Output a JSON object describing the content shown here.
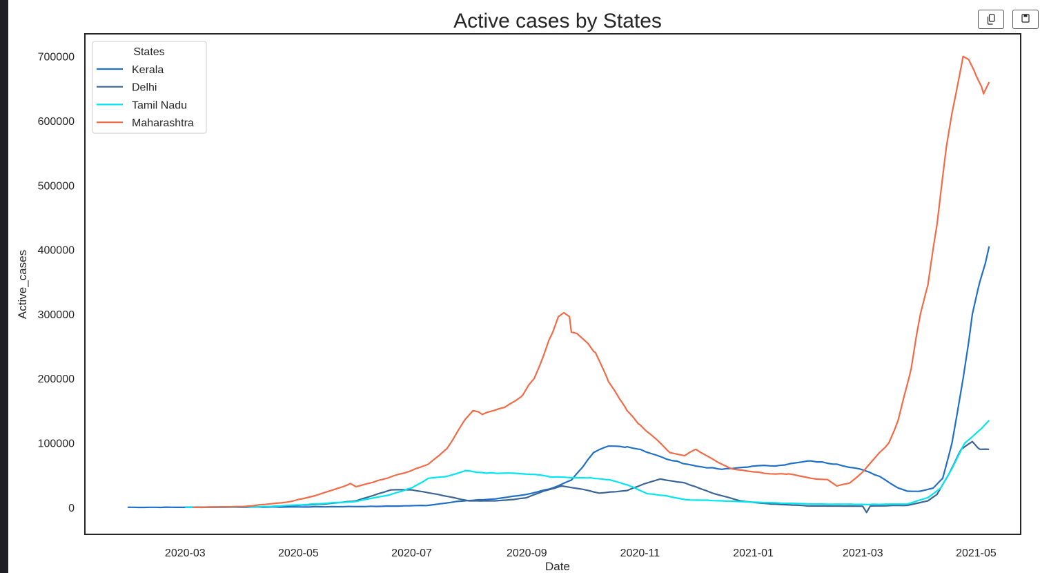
{
  "toolbar": {
    "copy_icon": "copy-icon",
    "save_icon": "save-icon"
  },
  "chart_data": {
    "type": "line",
    "title": "Active cases by States",
    "xlabel": "Date",
    "ylabel": "Active_cases",
    "ylim": [
      -42000,
      735000
    ],
    "xlim": [
      "2020-01-07",
      "2021-05-25"
    ],
    "grid": false,
    "legend": {
      "title": "States",
      "placement": "top-left"
    },
    "x_ticks": [
      "2020-03",
      "2020-05",
      "2020-07",
      "2020-09",
      "2020-11",
      "2021-01",
      "2021-03",
      "2021-05"
    ],
    "y_ticks": [
      0,
      100000,
      200000,
      300000,
      400000,
      500000,
      600000,
      700000
    ],
    "series": [
      {
        "name": "Kerala",
        "color": "#1f6fc9",
        "points": [
          [
            "2020-01-30",
            0
          ],
          [
            "2020-03-01",
            0
          ],
          [
            "2020-05-01",
            500
          ],
          [
            "2020-06-15",
            1500
          ],
          [
            "2020-07-10",
            3000
          ],
          [
            "2020-07-25",
            9000
          ],
          [
            "2020-08-15",
            13000
          ],
          [
            "2020-09-01",
            20000
          ],
          [
            "2020-09-15",
            30000
          ],
          [
            "2020-09-25",
            42000
          ],
          [
            "2020-10-01",
            62000
          ],
          [
            "2020-10-07",
            85000
          ],
          [
            "2020-10-15",
            95000
          ],
          [
            "2020-10-25",
            94000
          ],
          [
            "2020-11-01",
            90000
          ],
          [
            "2020-11-15",
            75000
          ],
          [
            "2020-12-01",
            64000
          ],
          [
            "2020-12-15",
            59000
          ],
          [
            "2020-12-20",
            60000
          ],
          [
            "2021-01-01",
            64000
          ],
          [
            "2021-01-15",
            65000
          ],
          [
            "2021-02-01",
            72000
          ],
          [
            "2021-02-15",
            67000
          ],
          [
            "2021-03-01",
            58000
          ],
          [
            "2021-03-10",
            48000
          ],
          [
            "2021-03-20",
            30000
          ],
          [
            "2021-03-25",
            25000
          ],
          [
            "2021-04-01",
            25000
          ],
          [
            "2021-04-08",
            30000
          ],
          [
            "2021-04-13",
            45000
          ],
          [
            "2021-04-18",
            100000
          ],
          [
            "2021-04-24",
            200000
          ],
          [
            "2021-04-29",
            300000
          ],
          [
            "2021-05-03",
            350000
          ],
          [
            "2021-05-08",
            405000
          ]
        ]
      },
      {
        "name": "Delhi",
        "color": "#3a6594",
        "points": [
          [
            "2020-03-01",
            0
          ],
          [
            "2020-04-15",
            1000
          ],
          [
            "2020-05-15",
            5000
          ],
          [
            "2020-06-01",
            10000
          ],
          [
            "2020-06-20",
            27000
          ],
          [
            "2020-07-01",
            27000
          ],
          [
            "2020-07-15",
            20000
          ],
          [
            "2020-07-25",
            14000
          ],
          [
            "2020-08-01",
            10000
          ],
          [
            "2020-08-15",
            10000
          ],
          [
            "2020-08-25",
            12000
          ],
          [
            "2020-09-01",
            15000
          ],
          [
            "2020-09-10",
            25000
          ],
          [
            "2020-09-20",
            33000
          ],
          [
            "2020-10-01",
            28000
          ],
          [
            "2020-10-10",
            22000
          ],
          [
            "2020-10-25",
            26000
          ],
          [
            "2020-11-05",
            38000
          ],
          [
            "2020-11-12",
            44000
          ],
          [
            "2020-11-25",
            38000
          ],
          [
            "2020-12-10",
            22000
          ],
          [
            "2020-12-25",
            10000
          ],
          [
            "2021-01-10",
            5000
          ],
          [
            "2021-02-01",
            2000
          ],
          [
            "2021-03-01",
            1500
          ],
          [
            "2021-03-03",
            -8000
          ],
          [
            "2021-03-05",
            2000
          ],
          [
            "2021-03-25",
            3000
          ],
          [
            "2021-04-05",
            10000
          ],
          [
            "2021-04-10",
            20000
          ],
          [
            "2021-04-16",
            50000
          ],
          [
            "2021-04-23",
            90000
          ],
          [
            "2021-04-29",
            102000
          ],
          [
            "2021-05-03",
            90000
          ],
          [
            "2021-05-08",
            90000
          ]
        ]
      },
      {
        "name": "Tamil Nadu",
        "color": "#00e5f2",
        "points": [
          [
            "2020-03-01",
            0
          ],
          [
            "2020-04-15",
            1000
          ],
          [
            "2020-05-15",
            6000
          ],
          [
            "2020-06-01",
            9000
          ],
          [
            "2020-06-20",
            20000
          ],
          [
            "2020-07-01",
            30000
          ],
          [
            "2020-07-10",
            45000
          ],
          [
            "2020-07-20",
            48000
          ],
          [
            "2020-07-30",
            57000
          ],
          [
            "2020-08-10",
            53000
          ],
          [
            "2020-08-25",
            53000
          ],
          [
            "2020-09-05",
            51000
          ],
          [
            "2020-09-15",
            47000
          ],
          [
            "2020-09-25",
            46000
          ],
          [
            "2020-10-05",
            46000
          ],
          [
            "2020-10-15",
            43000
          ],
          [
            "2020-10-25",
            35000
          ],
          [
            "2020-11-05",
            21000
          ],
          [
            "2020-11-15",
            18000
          ],
          [
            "2020-11-25",
            12000
          ],
          [
            "2020-12-15",
            10000
          ],
          [
            "2021-01-01",
            8000
          ],
          [
            "2021-02-01",
            5000
          ],
          [
            "2021-03-01",
            4500
          ],
          [
            "2021-03-25",
            5000
          ],
          [
            "2021-04-05",
            15000
          ],
          [
            "2021-04-12",
            30000
          ],
          [
            "2021-04-18",
            60000
          ],
          [
            "2021-04-25",
            100000
          ],
          [
            "2021-05-01",
            115000
          ],
          [
            "2021-05-08",
            135000
          ]
        ]
      },
      {
        "name": "Maharashtra",
        "color": "#f26a46",
        "points": [
          [
            "2020-03-05",
            0
          ],
          [
            "2020-04-01",
            1000
          ],
          [
            "2020-04-25",
            8000
          ],
          [
            "2020-05-10",
            18000
          ],
          [
            "2020-05-25",
            32000
          ],
          [
            "2020-05-29",
            37000
          ],
          [
            "2020-06-01",
            32000
          ],
          [
            "2020-06-15",
            43000
          ],
          [
            "2020-06-30",
            56000
          ],
          [
            "2020-07-10",
            67000
          ],
          [
            "2020-07-20",
            91000
          ],
          [
            "2020-07-30",
            137000
          ],
          [
            "2020-08-03",
            150000
          ],
          [
            "2020-08-08",
            144000
          ],
          [
            "2020-08-20",
            155000
          ],
          [
            "2020-08-30",
            175000
          ],
          [
            "2020-09-05",
            200000
          ],
          [
            "2020-09-10",
            235000
          ],
          [
            "2020-09-15",
            272000
          ],
          [
            "2020-09-18",
            296000
          ],
          [
            "2020-09-21",
            302000
          ],
          [
            "2020-09-24",
            296000
          ],
          [
            "2020-09-25",
            272000
          ],
          [
            "2020-10-01",
            262000
          ],
          [
            "2020-10-08",
            240000
          ],
          [
            "2020-10-15",
            195000
          ],
          [
            "2020-10-25",
            150000
          ],
          [
            "2020-11-01",
            128000
          ],
          [
            "2020-11-10",
            105000
          ],
          [
            "2020-11-17",
            85000
          ],
          [
            "2020-11-25",
            80000
          ],
          [
            "2020-12-01",
            90000
          ],
          [
            "2020-12-10",
            75000
          ],
          [
            "2020-12-20",
            60000
          ],
          [
            "2021-01-01",
            55000
          ],
          [
            "2021-01-10",
            52000
          ],
          [
            "2021-01-20",
            52000
          ],
          [
            "2021-02-01",
            45000
          ],
          [
            "2021-02-10",
            43000
          ],
          [
            "2021-02-15",
            33000
          ],
          [
            "2021-02-22",
            38000
          ],
          [
            "2021-03-01",
            55000
          ],
          [
            "2021-03-10",
            85000
          ],
          [
            "2021-03-15",
            100000
          ],
          [
            "2021-03-20",
            135000
          ],
          [
            "2021-03-27",
            215000
          ],
          [
            "2021-04-01",
            300000
          ],
          [
            "2021-04-05",
            345000
          ],
          [
            "2021-04-10",
            440000
          ],
          [
            "2021-04-15",
            560000
          ],
          [
            "2021-04-20",
            640000
          ],
          [
            "2021-04-24",
            700000
          ],
          [
            "2021-04-27",
            695000
          ],
          [
            "2021-05-01",
            670000
          ],
          [
            "2021-05-05",
            642000
          ],
          [
            "2021-05-08",
            660000
          ]
        ]
      }
    ]
  }
}
